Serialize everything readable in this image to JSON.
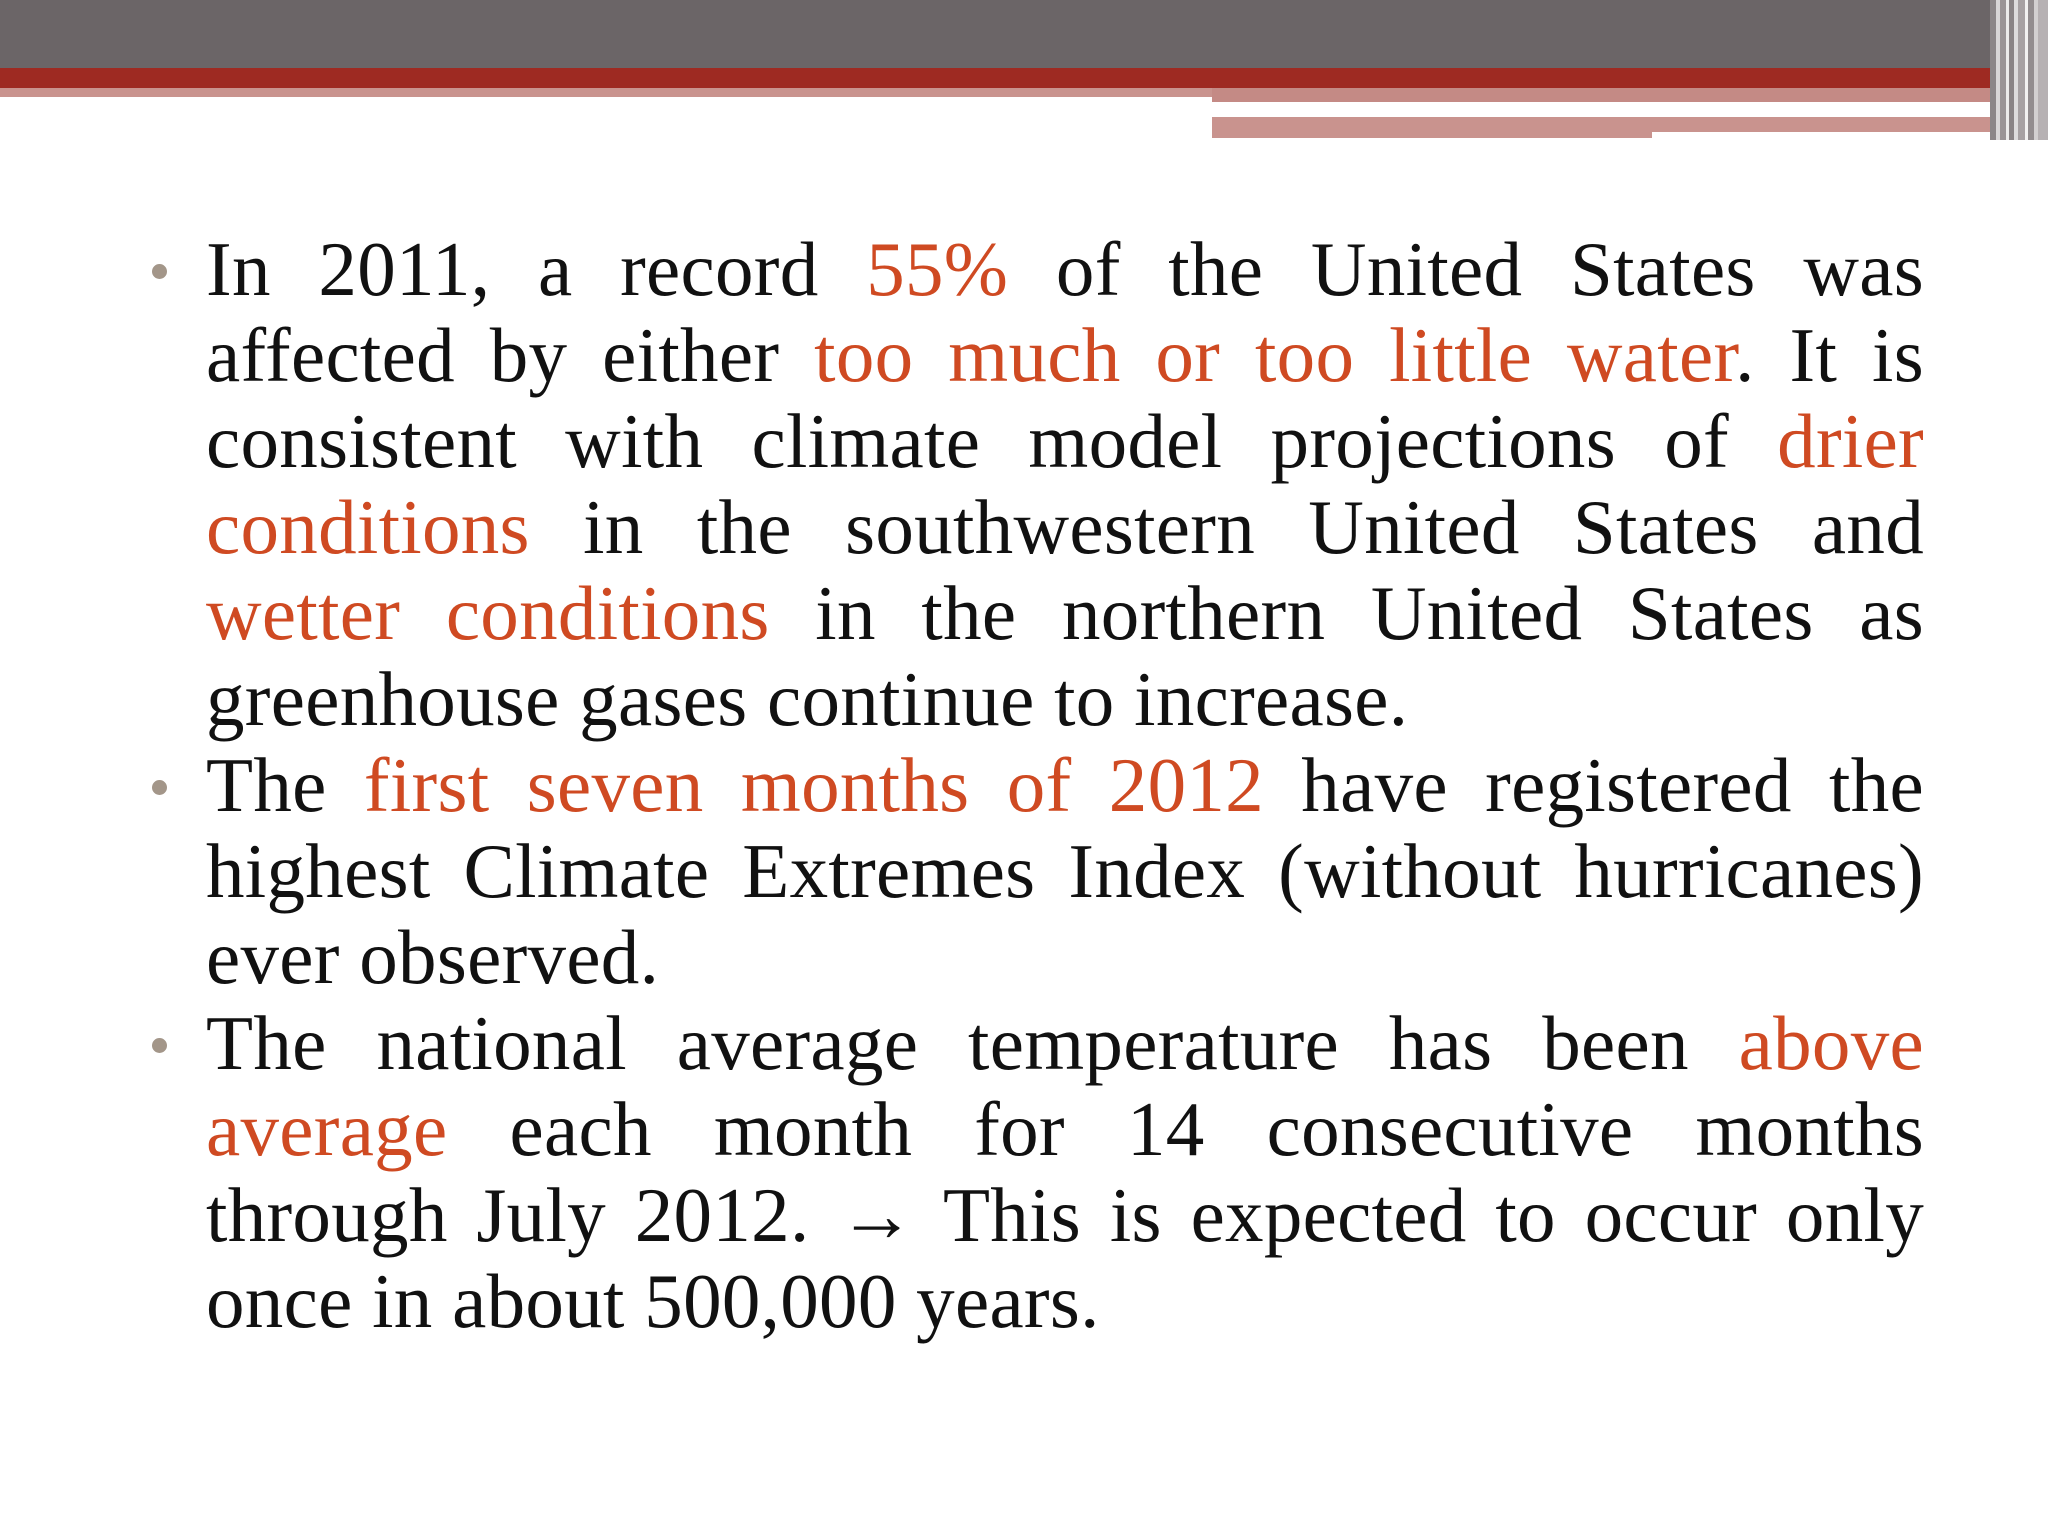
{
  "theme": {
    "accent_color": "#cf4a22",
    "header_gray": "#6b6567",
    "header_red": "#9e2a22",
    "bullet_color": "#a39689"
  },
  "bullets": [
    {
      "segments": [
        {
          "text": "In 2011, a record ",
          "highlight": false
        },
        {
          "text": "55%",
          "highlight": true
        },
        {
          "text": " of the United States was affected by either ",
          "highlight": false
        },
        {
          "text": "too much or too little water",
          "highlight": true
        },
        {
          "text": ". It is consistent with climate model projections of ",
          "highlight": false
        },
        {
          "text": "drier conditions",
          "highlight": true
        },
        {
          "text": " in the southwestern United States and ",
          "highlight": false
        },
        {
          "text": "wetter conditions",
          "highlight": true
        },
        {
          "text": " in the northern United States as greenhouse gases continue to increase.",
          "highlight": false
        }
      ]
    },
    {
      "segments": [
        {
          "text": "The ",
          "highlight": false
        },
        {
          "text": "first seven months of 2012",
          "highlight": true
        },
        {
          "text": " have registered the highest Climate Extremes Index (without hurricanes) ever observed.",
          "highlight": false
        }
      ]
    },
    {
      "segments": [
        {
          "text": "The national average temperature has been ",
          "highlight": false
        },
        {
          "text": "above average",
          "highlight": true
        },
        {
          "text": " each month for 14 consecutive months through July 2012. → This is expected to occur only once in about 500,000 years.",
          "highlight": false
        }
      ]
    }
  ]
}
